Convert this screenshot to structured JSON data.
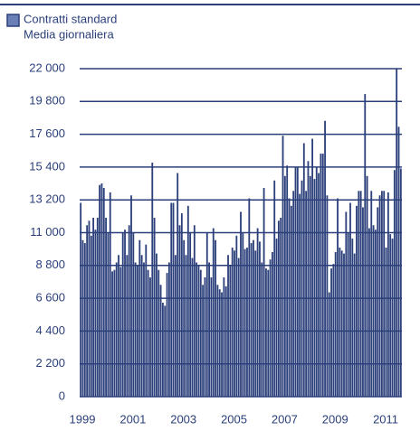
{
  "chart_data": {
    "type": "bar",
    "subtitle": "Media giornaliera",
    "categories": [
      "1999",
      null,
      null,
      null,
      null,
      null,
      null,
      null,
      null,
      null,
      null,
      null,
      null,
      null,
      null,
      null,
      null,
      null,
      null,
      null,
      null,
      null,
      null,
      null,
      "2001",
      null,
      null,
      null,
      null,
      null,
      null,
      null,
      null,
      null,
      null,
      null,
      null,
      null,
      null,
      null,
      null,
      null,
      null,
      null,
      null,
      null,
      null,
      null,
      "2003",
      null,
      null,
      null,
      null,
      null,
      null,
      null,
      null,
      null,
      null,
      null,
      null,
      null,
      null,
      null,
      null,
      null,
      null,
      null,
      null,
      null,
      null,
      null,
      "2005",
      null,
      null,
      null,
      null,
      null,
      null,
      null,
      null,
      null,
      null,
      null,
      null,
      null,
      null,
      null,
      null,
      null,
      null,
      null,
      null,
      null,
      null,
      null,
      "2007",
      null,
      null,
      null,
      null,
      null,
      null,
      null,
      null,
      null,
      null,
      null,
      null,
      null,
      null,
      null,
      null,
      null,
      null,
      null,
      null,
      null,
      null,
      null,
      "2009",
      null,
      null,
      null,
      null,
      null,
      null,
      null,
      null,
      null,
      null,
      null,
      null,
      null,
      null,
      null,
      null,
      null,
      null,
      null,
      null,
      null,
      null,
      null,
      "2011",
      null,
      null,
      null,
      null,
      null,
      null,
      null,
      null
    ],
    "series": [
      {
        "name": "Contratti standard",
        "color": "#2b3f7a",
        "values": [
          13000,
          10500,
          10300,
          11500,
          11800,
          10800,
          12000,
          11200,
          12000,
          14200,
          14300,
          14000,
          12000,
          11000,
          13700,
          8400,
          8500,
          9000,
          9500,
          8700,
          11000,
          11200,
          9500,
          11500,
          13500,
          11000,
          9000,
          8800,
          10500,
          9500,
          9000,
          10200,
          8500,
          8000,
          15700,
          12000,
          9600,
          8500,
          7500,
          6300,
          6100,
          8300,
          9000,
          13000,
          13000,
          9500,
          15000,
          11500,
          12300,
          10500,
          9500,
          12800,
          11000,
          9300,
          11500,
          9000,
          8800,
          8500,
          7500,
          8000,
          11000,
          9000,
          8000,
          11300,
          10500,
          7500,
          7200,
          7000,
          8000,
          7400,
          9500,
          8800,
          10000,
          9800,
          10800,
          9300,
          12400,
          11000,
          9900,
          10000,
          13300,
          10300,
          10500,
          9800,
          11300,
          10400,
          9000,
          14000,
          8600,
          8500,
          9200,
          9700,
          14500,
          10600,
          11800,
          12000,
          17500,
          14800,
          15500,
          13300,
          12800,
          13800,
          15400,
          15400,
          13600,
          14500,
          17000,
          13800,
          15800,
          14800,
          17300,
          14600,
          15400,
          15000,
          16300,
          16300,
          18500,
          13500,
          7000,
          8600,
          8900,
          9700,
          13300,
          10000,
          9800,
          9600,
          12400,
          11000,
          13000,
          10600,
          9600,
          12800,
          13800,
          13800,
          12700,
          20300,
          14800,
          11300,
          13800,
          11500,
          11200,
          12700,
          13500,
          13800,
          13800,
          10000,
          13700,
          10900,
          10600,
          15200,
          22000,
          18100,
          15300
        ]
      }
    ],
    "ylim": [
      0,
      22000
    ],
    "yticks": [
      0,
      {
        "value": 2200,
        "label": "2 200"
      },
      {
        "value": 4400,
        "label": "4 400"
      },
      {
        "value": 6600,
        "label": "6 600"
      },
      {
        "value": 8800,
        "label": "8 800"
      },
      {
        "value": 11000,
        "label": "11 000"
      },
      {
        "value": 13200,
        "label": "13 200"
      },
      {
        "value": 15400,
        "label": "15 400"
      },
      {
        "value": 17600,
        "label": "17 600"
      },
      {
        "value": 19800,
        "label": "19 800"
      },
      {
        "value": 22000,
        "label": "22 000"
      }
    ],
    "grid": true
  }
}
